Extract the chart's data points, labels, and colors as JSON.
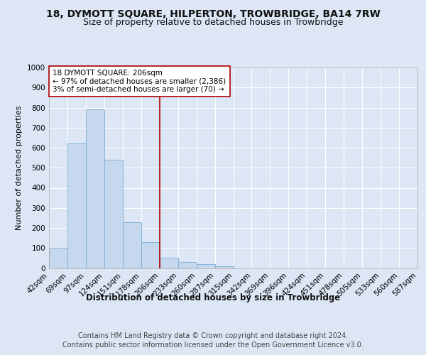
{
  "title": "18, DYMOTT SQUARE, HILPERTON, TROWBRIDGE, BA14 7RW",
  "subtitle": "Size of property relative to detached houses in Trowbridge",
  "xlabel": "Distribution of detached houses by size in Trowbridge",
  "ylabel": "Number of detached properties",
  "footer_line1": "Contains HM Land Registry data © Crown copyright and database right 2024.",
  "footer_line2": "Contains public sector information licensed under the Open Government Licence v3.0.",
  "annotation_line1": "18 DYMOTT SQUARE: 206sqm",
  "annotation_line2": "← 97% of detached houses are smaller (2,386)",
  "annotation_line3": "3% of semi-detached houses are larger (70) →",
  "bar_color": "#c5d8ee",
  "bar_edge_color": "#7aadd4",
  "redline_color": "#aa0000",
  "bin_labels": [
    "42sqm",
    "69sqm",
    "97sqm",
    "124sqm",
    "151sqm",
    "178sqm",
    "206sqm",
    "233sqm",
    "260sqm",
    "287sqm",
    "315sqm",
    "342sqm",
    "369sqm",
    "396sqm",
    "424sqm",
    "451sqm",
    "478sqm",
    "505sqm",
    "533sqm",
    "560sqm",
    "587sqm"
  ],
  "values": [
    100,
    620,
    790,
    540,
    230,
    130,
    50,
    30,
    20,
    10,
    0,
    0,
    0,
    0,
    0,
    0,
    0,
    0,
    0,
    0
  ],
  "redline_bin_index": 6,
  "ylim": [
    0,
    1000
  ],
  "yticks": [
    0,
    100,
    200,
    300,
    400,
    500,
    600,
    700,
    800,
    900,
    1000
  ],
  "background_color": "#dce6f5",
  "plot_bg_color": "#dce6f5",
  "grid_color": "#ffffff",
  "title_fontsize": 10,
  "subtitle_fontsize": 9,
  "ylabel_fontsize": 8,
  "xlabel_fontsize": 8.5,
  "tick_fontsize": 7.5,
  "footer_fontsize": 7,
  "annotation_fontsize": 7.5
}
